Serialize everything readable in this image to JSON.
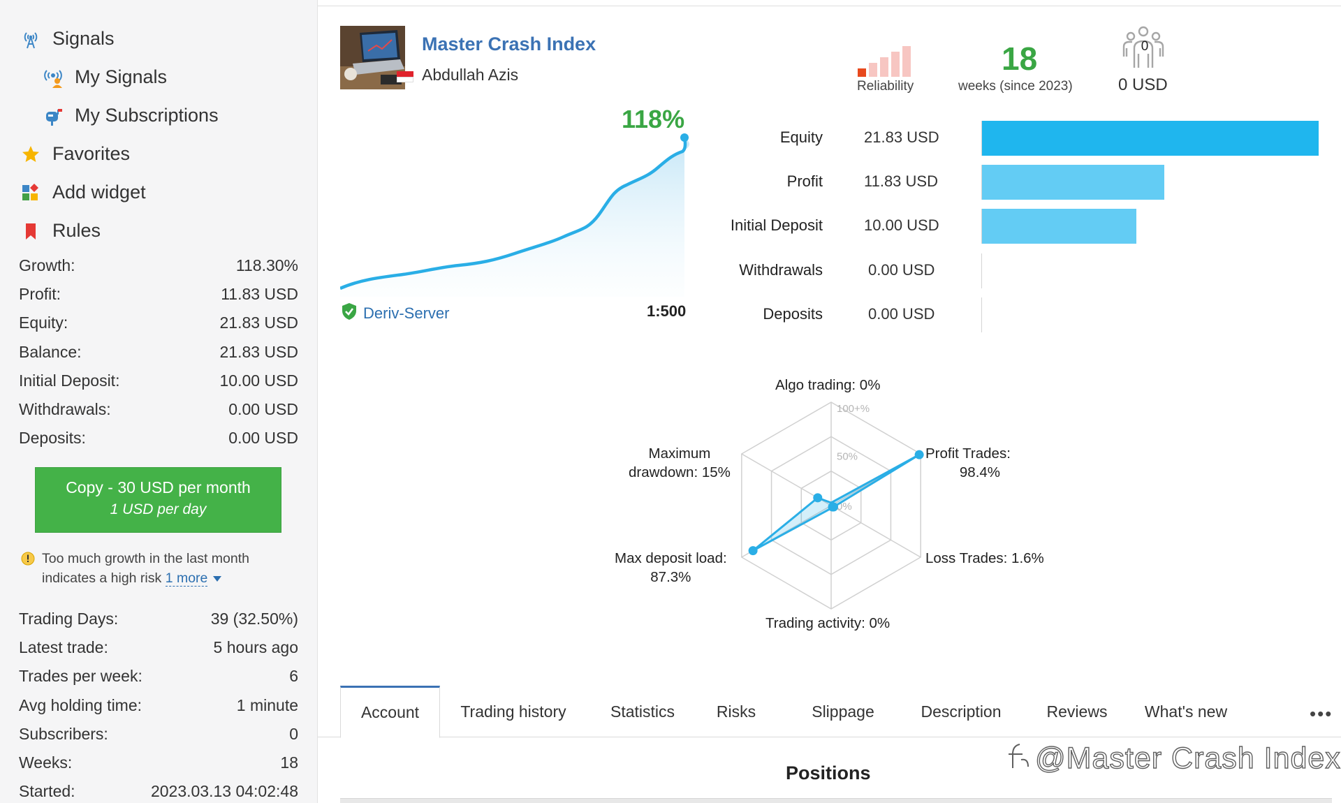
{
  "sidebar": {
    "nav": [
      {
        "label": "Signals",
        "icon": "antenna-icon"
      },
      {
        "label": "My Signals",
        "icon": "broadcast-user-icon"
      },
      {
        "label": "My Subscriptions",
        "icon": "mailbox-icon"
      },
      {
        "label": "Favorites",
        "icon": "star-icon"
      },
      {
        "label": "Add widget",
        "icon": "widget-icon"
      },
      {
        "label": "Rules",
        "icon": "bookmark-icon"
      }
    ],
    "stats": [
      {
        "label": "Growth:",
        "value": "118.30%"
      },
      {
        "label": "Profit:",
        "value": "11.83 USD"
      },
      {
        "label": "Equity:",
        "value": "21.83 USD"
      },
      {
        "label": "Balance:",
        "value": "21.83 USD"
      },
      {
        "label": "Initial Deposit:",
        "value": "10.00 USD"
      },
      {
        "label": "Withdrawals:",
        "value": "0.00 USD"
      },
      {
        "label": "Deposits:",
        "value": "0.00 USD"
      }
    ],
    "copy_button": {
      "line1": "Copy - 30 USD per month",
      "line2": "1 USD per day",
      "color": "#44b248"
    },
    "warning": {
      "text": "Too much growth in the last month indicates a high risk",
      "more": "1 more"
    },
    "stats2": [
      {
        "label": "Trading Days:",
        "value": "39 (32.50%)"
      },
      {
        "label": "Latest trade:",
        "value": "5 hours ago"
      },
      {
        "label": "Trades per week:",
        "value": "6"
      },
      {
        "label": "Avg holding time:",
        "value": "1 minute"
      },
      {
        "label": "Subscribers:",
        "value": "0"
      },
      {
        "label": "Weeks:",
        "value": "18"
      },
      {
        "label": "Started:",
        "value": "2023.03.13 04:02:48"
      }
    ]
  },
  "header": {
    "title": "Master Crash Index",
    "author": "Abdullah Azis",
    "reliability_label": "Reliability",
    "reliability_level": 1,
    "reliability_max": 5,
    "weeks_value": "18",
    "weeks_label": "weeks (since 2023)",
    "subscribers_count": "0",
    "subscribers_usd": "0 USD"
  },
  "growth": {
    "value_label": "118%",
    "server": "Deriv-Server",
    "leverage": "1:500",
    "accent": "#2aaee6",
    "growth_color": "#3aa644"
  },
  "balance": {
    "max": 21.83,
    "rows": [
      {
        "label": "Equity",
        "value_text": "21.83 USD",
        "value": 21.83,
        "color": "#1fb6ee"
      },
      {
        "label": "Profit",
        "value_text": "11.83 USD",
        "value": 11.83,
        "color": "#63ccf4"
      },
      {
        "label": "Initial Deposit",
        "value_text": "10.00 USD",
        "value": 10.0,
        "color": "#63ccf4"
      },
      {
        "label": "Withdrawals",
        "value_text": "0.00 USD",
        "value": 0.0,
        "color": "#63ccf4"
      },
      {
        "label": "Deposits",
        "value_text": "0.00 USD",
        "value": 0.0,
        "color": "#63ccf4"
      }
    ]
  },
  "chart_data": {
    "type": "radar",
    "rings": [
      "100+%",
      "50%",
      "0%"
    ],
    "axes": [
      {
        "label": "Algo trading: 0%",
        "value": 0
      },
      {
        "label": "Profit Trades: 98.4%",
        "value": 98.4
      },
      {
        "label": "Loss Trades: 1.6%",
        "value": 1.6
      },
      {
        "label": "Trading activity: 0%",
        "value": 0
      },
      {
        "label": "Max deposit load: 87.3%",
        "value": 87.3
      },
      {
        "label": "Maximum drawdown: 15%",
        "value": 15
      }
    ],
    "radar_labels": {
      "algo": "Algo trading: 0%",
      "profit_l1": "Profit Trades:",
      "profit_l2": "98.4%",
      "loss": "Loss Trades: 1.6%",
      "activity": "Trading activity: 0%",
      "load_l1": "Max deposit load:",
      "load_l2": "87.3%",
      "dd_l1": "Maximum",
      "dd_l2": "drawdown: 15%"
    }
  },
  "tabs": [
    "Account",
    "Trading history",
    "Statistics",
    "Risks",
    "Slippage",
    "Description",
    "Reviews",
    "What's new"
  ],
  "tabs_more": "•••",
  "positions_title": "Positions",
  "watermark": "@Master Crash Index"
}
